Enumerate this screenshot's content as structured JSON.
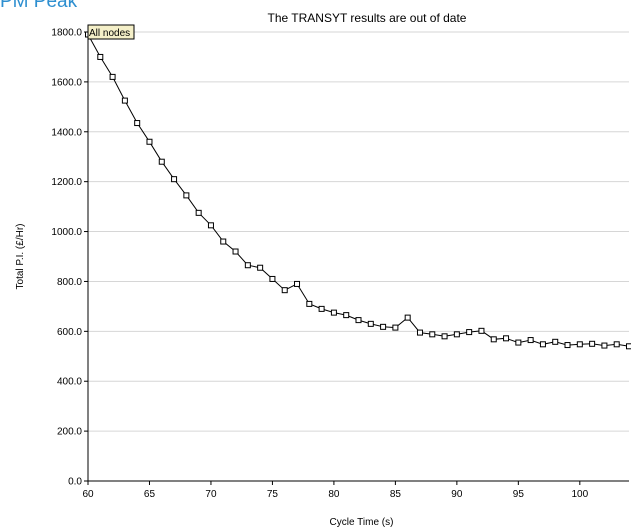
{
  "page": {
    "title": "PM Peak"
  },
  "chart_data": {
    "type": "line",
    "title": "The TRANSYT results are out of date",
    "xlabel": "Cycle Time (s)",
    "ylabel": "Total P.I. (£/Hr)",
    "xlim": [
      60,
      104
    ],
    "ylim": [
      0,
      1800
    ],
    "xticks": [
      60,
      65,
      70,
      75,
      80,
      85,
      90,
      95,
      100
    ],
    "yticks": [
      0,
      200,
      400,
      600,
      800,
      1000,
      1200,
      1400,
      1600,
      1800
    ],
    "ytick_labels": [
      "0.0",
      "200.0",
      "400.0",
      "600.0",
      "800.0",
      "1000.0",
      "1200.0",
      "1400.0",
      "1600.0",
      "1800.0"
    ],
    "grid": "horizontal",
    "legend": {
      "position": "top-left",
      "label": "All nodes"
    },
    "line_color": "#000000",
    "marker": "square",
    "series": [
      {
        "name": "All nodes",
        "x": [
          60,
          61,
          62,
          63,
          64,
          65,
          66,
          67,
          68,
          69,
          70,
          71,
          72,
          73,
          74,
          75,
          76,
          77,
          78,
          79,
          80,
          81,
          82,
          83,
          84,
          85,
          86,
          87,
          88,
          89,
          90,
          91,
          92,
          93,
          94,
          95,
          96,
          97,
          98,
          99,
          100,
          101,
          102,
          103,
          104
        ],
        "y": [
          1790,
          1700,
          1620,
          1525,
          1435,
          1360,
          1280,
          1210,
          1145,
          1075,
          1025,
          960,
          920,
          865,
          855,
          810,
          765,
          790,
          710,
          690,
          675,
          665,
          645,
          630,
          618,
          615,
          655,
          595,
          588,
          580,
          588,
          597,
          602,
          568,
          572,
          555,
          565,
          548,
          558,
          545,
          548,
          550,
          543,
          548,
          540
        ]
      }
    ]
  }
}
